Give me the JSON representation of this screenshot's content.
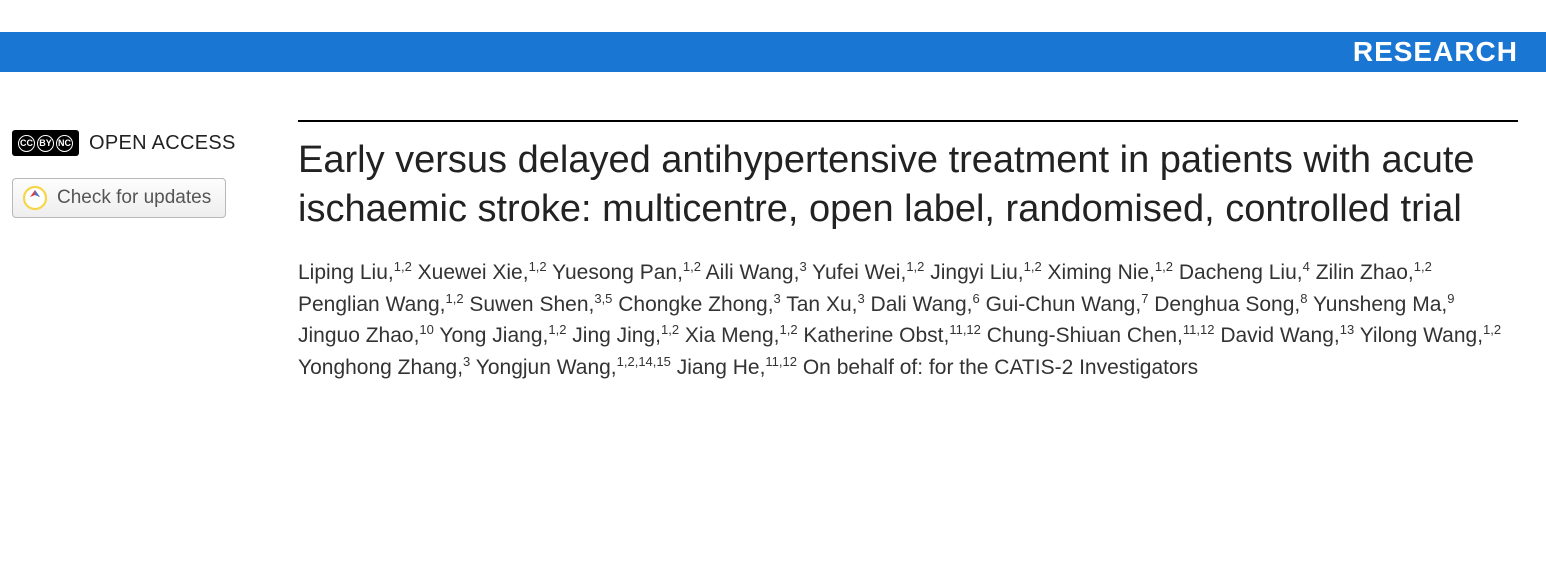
{
  "banner": {
    "label": "RESEARCH",
    "background_color": "#1976d2",
    "text_color": "#ffffff",
    "font_size": 28
  },
  "sidebar": {
    "open_access_label": "OPEN ACCESS",
    "cc_icons": [
      "CC",
      "BY",
      "NC"
    ],
    "updates_button_label": "Check for updates",
    "crossmark_colors": {
      "ring": "#f8d548",
      "ribbon_left": "#e23b3b",
      "ribbon_right": "#3a7fd5"
    }
  },
  "article": {
    "title": "Early versus delayed antihypertensive treatment in patients with acute ischaemic stroke: multicentre, open label, randomised, controlled trial",
    "title_font_size": 38,
    "author_font_size": 21,
    "authors": [
      {
        "name": "Liping Liu",
        "affil": "1,2"
      },
      {
        "name": "Xuewei Xie",
        "affil": "1,2"
      },
      {
        "name": "Yuesong Pan",
        "affil": "1,2"
      },
      {
        "name": "Aili Wang",
        "affil": "3"
      },
      {
        "name": "Yufei Wei",
        "affil": "1,2"
      },
      {
        "name": "Jingyi Liu",
        "affil": "1,2"
      },
      {
        "name": "Ximing Nie",
        "affil": "1,2"
      },
      {
        "name": "Dacheng Liu",
        "affil": "4"
      },
      {
        "name": "Zilin Zhao",
        "affil": "1,2"
      },
      {
        "name": "Penglian Wang",
        "affil": "1,2"
      },
      {
        "name": "Suwen Shen",
        "affil": "3,5"
      },
      {
        "name": "Chongke Zhong",
        "affil": "3"
      },
      {
        "name": "Tan Xu",
        "affil": "3"
      },
      {
        "name": "Dali Wang",
        "affil": "6"
      },
      {
        "name": "Gui-Chun Wang",
        "affil": "7"
      },
      {
        "name": "Denghua Song",
        "affil": "8"
      },
      {
        "name": "Yunsheng Ma",
        "affil": "9"
      },
      {
        "name": "Jinguo Zhao",
        "affil": "10"
      },
      {
        "name": "Yong Jiang",
        "affil": "1,2"
      },
      {
        "name": "Jing Jing",
        "affil": "1,2"
      },
      {
        "name": "Xia Meng",
        "affil": "1,2"
      },
      {
        "name": "Katherine Obst",
        "affil": "11,12"
      },
      {
        "name": "Chung-Shiuan Chen",
        "affil": "11,12"
      },
      {
        "name": "David Wang",
        "affil": "13"
      },
      {
        "name": "Yilong Wang",
        "affil": "1,2"
      },
      {
        "name": "Yonghong Zhang",
        "affil": "3"
      },
      {
        "name": "Yongjun Wang",
        "affil": "1,2,14,15"
      },
      {
        "name": "Jiang He",
        "affil": "11,12"
      }
    ],
    "on_behalf_text": "On behalf of: for the CATIS-2 Investigators"
  },
  "colors": {
    "page_background": "#ffffff",
    "text_primary": "#222222",
    "text_secondary": "#555555",
    "rule": "#000000",
    "button_border": "#b8b8b8",
    "button_bg_top": "#fdfdfd",
    "button_bg_bottom": "#eeeeee"
  }
}
